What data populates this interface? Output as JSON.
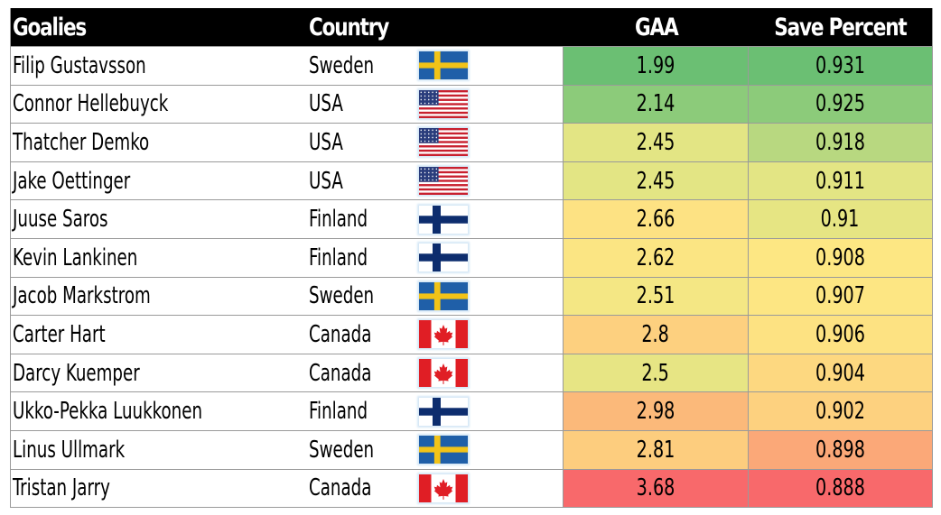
{
  "headers": {
    "goalies": "Goalies",
    "country": "Country",
    "gaa": "GAA",
    "save_percent": "Save Percent"
  },
  "chart_data": {
    "type": "table",
    "columns": [
      "Goalies",
      "Country",
      "GAA",
      "Save Percent"
    ],
    "rows": [
      {
        "goalie": "Filip Gustavsson",
        "country": "Sweden",
        "flag": "sweden-flag",
        "gaa": "1.99",
        "sv": "0.931",
        "gaa_color": "#6bbf73",
        "sv_color": "#6bbf73"
      },
      {
        "goalie": "Connor Hellebuyck",
        "country": "USA",
        "flag": "usa-flag",
        "gaa": "2.14",
        "sv": "0.925",
        "gaa_color": "#8ccb7a",
        "sv_color": "#8ccb7a"
      },
      {
        "goalie": "Thatcher Demko",
        "country": "USA",
        "flag": "usa-flag",
        "gaa": "2.45",
        "sv": "0.918",
        "gaa_color": "#e3e584",
        "sv_color": "#b8d880"
      },
      {
        "goalie": "Jake Oettinger",
        "country": "USA",
        "flag": "usa-flag",
        "gaa": "2.45",
        "sv": "0.911",
        "gaa_color": "#e3e584",
        "sv_color": "#e3e584"
      },
      {
        "goalie": "Juuse Saros",
        "country": "Finland",
        "flag": "finland-flag",
        "gaa": "2.66",
        "sv": "0.91",
        "gaa_color": "#fde283",
        "sv_color": "#e6e583"
      },
      {
        "goalie": "Kevin Lankinen",
        "country": "Finland",
        "flag": "finland-flag",
        "gaa": "2.62",
        "sv": "0.908",
        "gaa_color": "#fbe583",
        "sv_color": "#fde783"
      },
      {
        "goalie": "Jacob Markstrom",
        "country": "Sweden",
        "flag": "sweden-flag",
        "gaa": "2.51",
        "sv": "0.907",
        "gaa_color": "#f4e784",
        "sv_color": "#fde683"
      },
      {
        "goalie": "Carter Hart",
        "country": "Canada",
        "flag": "canada-flag",
        "gaa": "2.8",
        "sv": "0.906",
        "gaa_color": "#fdd07f",
        "sv_color": "#fde282"
      },
      {
        "goalie": "Darcy Kuemper",
        "country": "Canada",
        "flag": "canada-flag",
        "gaa": "2.5",
        "sv": "0.904",
        "gaa_color": "#e7e584",
        "sv_color": "#fdd880"
      },
      {
        "goalie": "Ukko-Pekka Luukkonen",
        "country": "Finland",
        "flag": "finland-flag",
        "gaa": "2.98",
        "sv": "0.902",
        "gaa_color": "#fbb97a",
        "sv_color": "#fdd17f"
      },
      {
        "goalie": "Linus Ullmark",
        "country": "Sweden",
        "flag": "sweden-flag",
        "gaa": "2.81",
        "sv": "0.898",
        "gaa_color": "#fdcd7e",
        "sv_color": "#fba878"
      },
      {
        "goalie": "Tristan Jarry",
        "country": "Canada",
        "flag": "canada-flag",
        "gaa": "3.68",
        "sv": "0.888",
        "gaa_color": "#f8696b",
        "sv_color": "#f8696b"
      }
    ]
  }
}
